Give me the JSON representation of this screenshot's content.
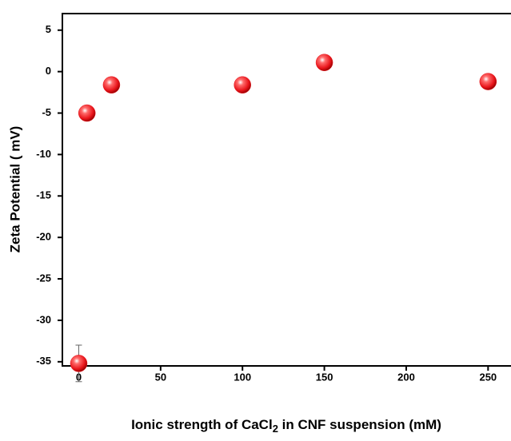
{
  "chart_data": {
    "type": "scatter",
    "xlabel": [
      "Ionic strength of CaCl",
      "2",
      " in CNF suspension (mM)"
    ],
    "ylabel": "Zeta Potential ( mV)",
    "x": [
      0,
      5,
      20,
      100,
      150,
      250
    ],
    "y": [
      -35.2,
      -5.0,
      -1.6,
      -1.6,
      1.1,
      -1.2
    ],
    "errors": [
      2.2,
      0.3,
      0.4,
      0.4,
      0.3,
      0.3
    ],
    "color": "#e8141a",
    "xlim": [
      -10,
      264
    ],
    "ylim": [
      -35.5,
      7
    ],
    "xticks": [
      0,
      50,
      100,
      150,
      200,
      250
    ],
    "yticks": [
      5,
      0,
      -5,
      -10,
      -15,
      -20,
      -25,
      -30,
      -35
    ]
  }
}
